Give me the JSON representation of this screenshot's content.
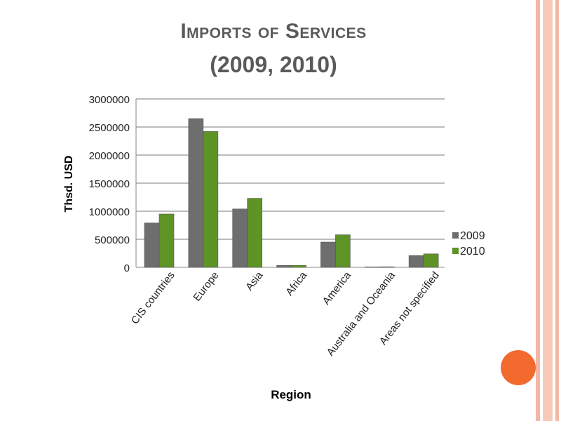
{
  "slide": {
    "title_line1": "Imports of Services",
    "title_line2": "(2009, 2010)"
  },
  "colors": {
    "series_2009": "#6e6e6e",
    "series_2010": "#5e9426",
    "accent_circle": "#f26a2e",
    "border_stripes": "#f4b7a5"
  },
  "chart_data": {
    "type": "bar",
    "title": "",
    "xlabel": "Region",
    "ylabel": "Thsd. USD",
    "ylim": [
      0,
      3000000
    ],
    "yticks": [
      "0",
      "500000",
      "1000000",
      "1500000",
      "2000000",
      "2500000",
      "3000000"
    ],
    "grid": true,
    "legend_position": "right",
    "categories": [
      "CIS countries",
      "Europe",
      "Asia",
      "Africa",
      "America",
      "Australia and Oceania",
      "Areas not specified"
    ],
    "series": [
      {
        "name": "2009",
        "values": [
          790000,
          2650000,
          1040000,
          35000,
          450000,
          8000,
          210000
        ]
      },
      {
        "name": "2010",
        "values": [
          950000,
          2420000,
          1230000,
          35000,
          580000,
          10000,
          240000
        ]
      }
    ]
  }
}
